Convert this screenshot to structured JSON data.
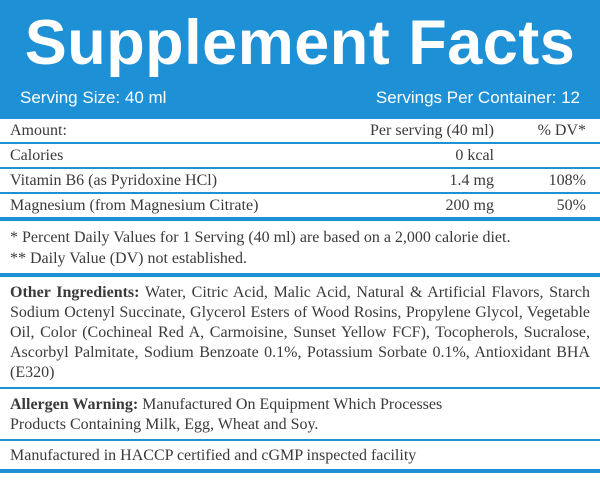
{
  "header": {
    "title": "Supplement Facts",
    "serving_size": "Serving Size: 40 ml",
    "servings_per_container": "Servings Per Container: 12"
  },
  "table": {
    "columns": [
      "Amount:",
      "Per serving (40 ml)",
      "% DV*"
    ],
    "rows": [
      {
        "name": "Calories",
        "amount": "0 kcal",
        "dv": ""
      },
      {
        "name": "Vitamin B6 (as Pyridoxine HCl)",
        "amount": "1.4 mg",
        "dv": "108%"
      },
      {
        "name": "Magnesium (from Magnesium Citrate)",
        "amount": "200 mg",
        "dv": "50%"
      }
    ]
  },
  "notes": [
    "* Percent Daily Values for 1 Serving (40 ml) are based on a 2,000 calorie diet.",
    "** Daily Value (DV) not established."
  ],
  "other_ingredients": {
    "label": "Other Ingredients:",
    "text": " Water, Citric Acid, Malic Acid, Natural & Artificial Flavors, Starch Sodium Octenyl Succinate, Glycerol Esters of Wood Rosins, Propylene Glycol, Vegetable Oil, Color (Cochineal Red A, Carmoisine, Sunset Yellow FCF), Tocopherols, Sucralose, Ascorbyl Palmitate, Sodium Benzoate 0.1%, Potassium Sorbate 0.1%, Antioxidant BHA (E320)"
  },
  "allergen": {
    "label": "Allergen Warning:",
    "line1": " Manufactured On Equipment Which Processes",
    "line2": "Products Containing Milk, Egg, Wheat and Soy."
  },
  "facility": "Manufactured in HACCP certified and cGMP inspected facility"
}
